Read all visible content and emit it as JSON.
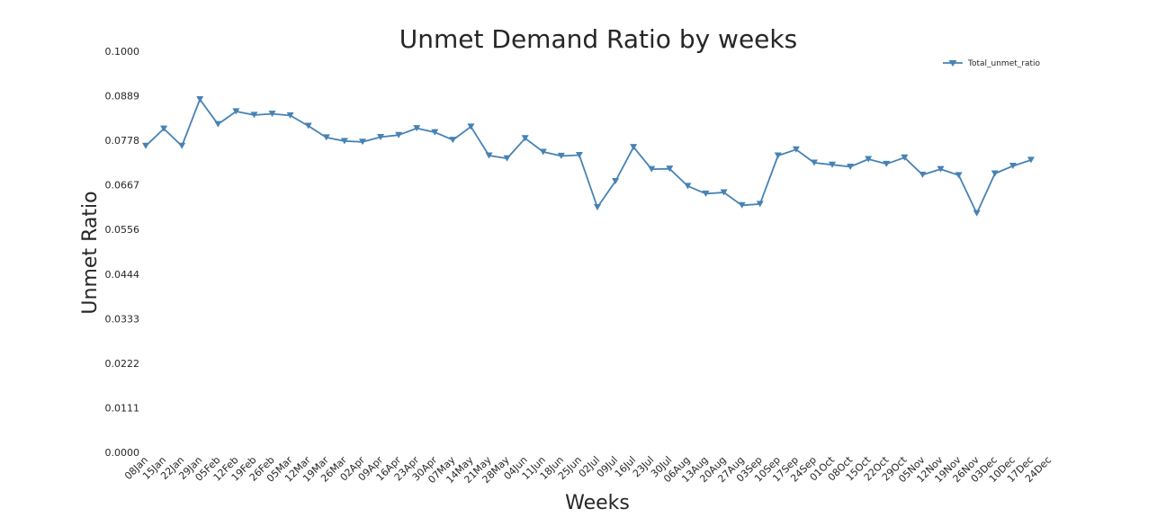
{
  "chart_data": {
    "type": "line",
    "title": "Unmet Demand Ratio by weeks",
    "xlabel": "Weeks",
    "ylabel": "Unmet Ratio",
    "ylim": [
      0.0,
      0.1
    ],
    "yticks": [
      "0.0000",
      "0.0111",
      "0.0222",
      "0.0333",
      "0.0444",
      "0.0556",
      "0.0667",
      "0.0778",
      "0.0889",
      "0.1000"
    ],
    "categories": [
      "08Jan",
      "15Jan",
      "22Jan",
      "29Jan",
      "05Feb",
      "12Feb",
      "19Feb",
      "26Feb",
      "05Mar",
      "12Mar",
      "19Mar",
      "26Mar",
      "02Apr",
      "09Apr",
      "16Apr",
      "23Apr",
      "30Apr",
      "07May",
      "14May",
      "21May",
      "28May",
      "04Jun",
      "11Jun",
      "18Jun",
      "25Jun",
      "02Jul",
      "09Jul",
      "16Jul",
      "23Jul",
      "30Jul",
      "06Aug",
      "13Aug",
      "20Aug",
      "27Aug",
      "03Sep",
      "10Sep",
      "17Sep",
      "24Sep",
      "01Oct",
      "08Oct",
      "15Oct",
      "22Oct",
      "29Oct",
      "05Nov",
      "12Nov",
      "19Nov",
      "26Nov",
      "03Dec",
      "10Dec",
      "17Dec",
      "24Dec"
    ],
    "grid": false,
    "legend_position": "top-right",
    "series": [
      {
        "name": "Total_unmet_ratio",
        "color": "#4682b4",
        "marker": "triangle-down",
        "values": [
          0.0764,
          0.0807,
          0.0764,
          0.088,
          0.0818,
          0.085,
          0.0841,
          0.0844,
          0.084,
          0.0814,
          0.0785,
          0.0776,
          0.0774,
          0.0786,
          0.0791,
          0.0808,
          0.0798,
          0.0779,
          0.0812,
          0.074,
          0.0733,
          0.0783,
          0.0749,
          0.0739,
          0.0741,
          0.0611,
          0.0676,
          0.0761,
          0.0706,
          0.0707,
          0.0664,
          0.0645,
          0.0648,
          0.0616,
          0.0619,
          0.074,
          0.0755,
          0.0722,
          0.0717,
          0.0712,
          0.0731,
          0.0719,
          0.0735,
          0.0692,
          0.0706,
          0.0691,
          0.0596,
          0.0695,
          0.0714,
          0.0729,
          null
        ]
      }
    ]
  }
}
